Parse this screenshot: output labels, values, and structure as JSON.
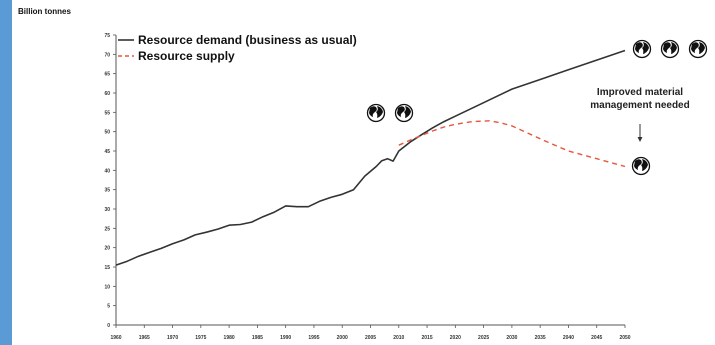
{
  "chart_data": {
    "type": "line",
    "title": "",
    "ylabel": "Billion tonnes",
    "xlabel": "",
    "xlim": [
      1960,
      2050
    ],
    "ylim": [
      0,
      75
    ],
    "yticks": [
      0,
      5,
      10,
      15,
      20,
      25,
      30,
      35,
      40,
      45,
      50,
      55,
      60,
      65,
      70,
      75
    ],
    "xticks": [
      1960,
      1965,
      1970,
      1975,
      1980,
      1985,
      1990,
      1995,
      2000,
      2005,
      2010,
      2015,
      2020,
      2025,
      2030,
      2035,
      2040,
      2045,
      2050
    ],
    "grid": false,
    "legend_position": "top-left",
    "series": [
      {
        "name": "Resource demand (business as usual)",
        "color": "#333333",
        "style": "solid",
        "points": [
          [
            1960,
            15.5
          ],
          [
            1962,
            16.5
          ],
          [
            1964,
            17.8
          ],
          [
            1966,
            18.8
          ],
          [
            1968,
            19.8
          ],
          [
            1970,
            21
          ],
          [
            1972,
            22
          ],
          [
            1974,
            23.3
          ],
          [
            1976,
            24
          ],
          [
            1978,
            24.8
          ],
          [
            1980,
            25.8
          ],
          [
            1982,
            26
          ],
          [
            1984,
            26.6
          ],
          [
            1986,
            28
          ],
          [
            1988,
            29.2
          ],
          [
            1990,
            30.8
          ],
          [
            1992,
            30.6
          ],
          [
            1994,
            30.6
          ],
          [
            1996,
            32
          ],
          [
            1998,
            33
          ],
          [
            2000,
            33.8
          ],
          [
            2002,
            35
          ],
          [
            2004,
            38.5
          ],
          [
            2006,
            41
          ],
          [
            2007,
            42.5
          ],
          [
            2008,
            43
          ],
          [
            2009,
            42.4
          ],
          [
            2010,
            45
          ],
          [
            2012,
            47.3
          ],
          [
            2014,
            49.2
          ],
          [
            2016,
            51
          ],
          [
            2018,
            52.6
          ],
          [
            2020,
            54
          ],
          [
            2025,
            57.5
          ],
          [
            2030,
            61
          ],
          [
            2035,
            63.5
          ],
          [
            2040,
            66
          ],
          [
            2045,
            68.5
          ],
          [
            2050,
            71
          ]
        ]
      },
      {
        "name": "Resource supply",
        "color": "#e8553b",
        "style": "dashed",
        "points": [
          [
            2010,
            46.5
          ],
          [
            2012,
            47.8
          ],
          [
            2014,
            49
          ],
          [
            2016,
            50.2
          ],
          [
            2018,
            51.2
          ],
          [
            2020,
            51.9
          ],
          [
            2023,
            52.6
          ],
          [
            2026,
            52.8
          ],
          [
            2028,
            52.3
          ],
          [
            2030,
            51.5
          ],
          [
            2033,
            49.5
          ],
          [
            2036,
            47.5
          ],
          [
            2040,
            45
          ],
          [
            2045,
            43
          ],
          [
            2050,
            41
          ]
        ]
      }
    ],
    "annotations": [
      {
        "text_lines": [
          "Improved material",
          "management needed"
        ],
        "x": 2050,
        "y": 57
      }
    ],
    "globe_markers": [
      {
        "count": 2,
        "x": 2005,
        "y": 55
      },
      {
        "count": 3,
        "x": 2050,
        "y": 71
      },
      {
        "count": 1,
        "x": 2050,
        "y": 41
      }
    ]
  },
  "colors": {
    "accent_bar": "#5b9bd5",
    "axis": "#555555"
  }
}
